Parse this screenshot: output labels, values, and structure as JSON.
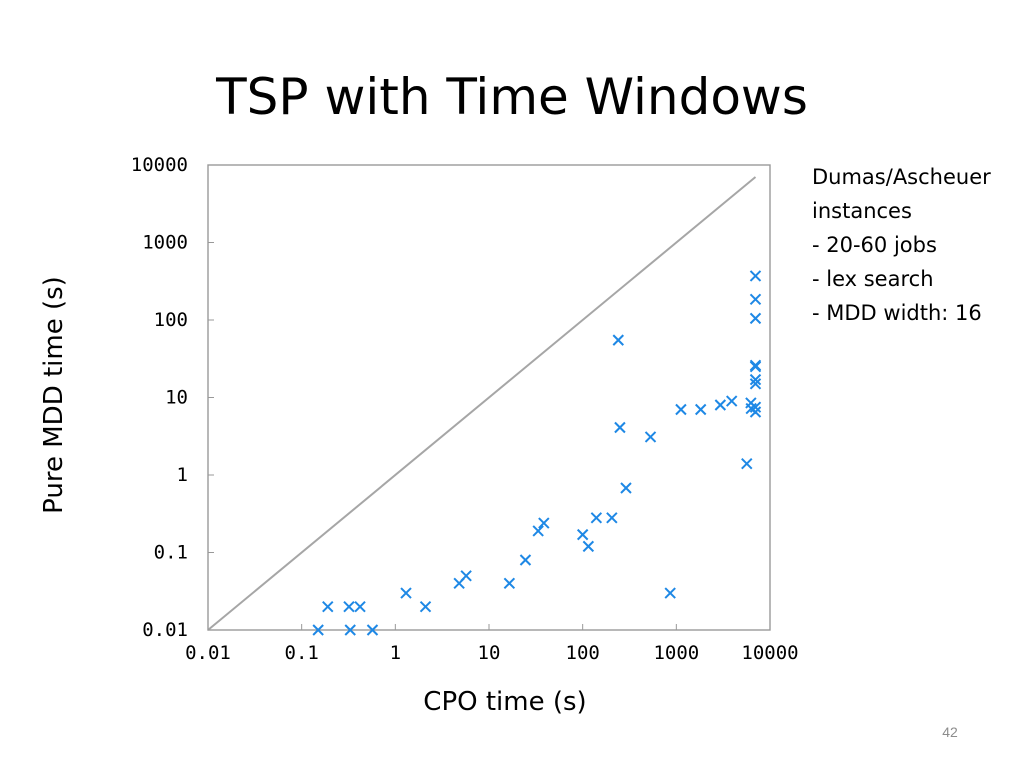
{
  "slide": {
    "title": "TSP with Time Windows",
    "notes": [
      "Dumas/Ascheuer",
      "instances",
      "- 20-60 jobs",
      "- lex search",
      "- MDD width: 16"
    ],
    "page_number": "42"
  },
  "chart_data": {
    "type": "scatter",
    "title": "",
    "xlabel": "CPO time (s)",
    "ylabel": "Pure MDD time (s)",
    "xscale": "log",
    "yscale": "log",
    "xlim": [
      0.01,
      10000
    ],
    "ylim": [
      0.01,
      10000
    ],
    "grid": false,
    "x_ticks": [
      0.01,
      0.1,
      1,
      10,
      100,
      1000,
      10000
    ],
    "x_tick_labels": [
      "0.01",
      "0.1",
      "1",
      "10",
      "100",
      "1000",
      "10000"
    ],
    "y_ticks": [
      0.01,
      0.1,
      1,
      10,
      100,
      1000,
      10000
    ],
    "y_tick_labels": [
      "0.01",
      "0.1",
      "1",
      "10",
      "100",
      "1000",
      "10000"
    ],
    "reference_line": {
      "from": [
        0.01,
        0.01
      ],
      "to": [
        7000,
        7000
      ],
      "color": "#a6a6a6"
    },
    "marker": "x",
    "marker_color": "#1e88e5",
    "series": [
      {
        "points": [
          [
            0.15,
            0.01
          ],
          [
            0.19,
            0.02
          ],
          [
            0.32,
            0.02
          ],
          [
            0.33,
            0.01
          ],
          [
            0.42,
            0.02
          ],
          [
            0.57,
            0.01
          ],
          [
            1.3,
            0.03
          ],
          [
            2.1,
            0.02
          ],
          [
            4.8,
            0.04
          ],
          [
            5.7,
            0.05
          ],
          [
            16.5,
            0.04
          ],
          [
            24.5,
            0.08
          ],
          [
            33.5,
            0.19
          ],
          [
            38.5,
            0.24
          ],
          [
            100,
            0.17
          ],
          [
            115,
            0.12
          ],
          [
            140,
            0.28
          ],
          [
            205,
            0.28
          ],
          [
            240,
            55
          ],
          [
            250,
            4.1
          ],
          [
            290,
            0.68
          ],
          [
            530,
            3.1
          ],
          [
            860,
            0.03
          ],
          [
            1120,
            7
          ],
          [
            1820,
            7
          ],
          [
            2950,
            8
          ],
          [
            3900,
            9
          ],
          [
            5650,
            1.4
          ],
          [
            6250,
            8.5
          ],
          [
            6300,
            7.2
          ],
          [
            7000,
            370
          ],
          [
            7000,
            185
          ],
          [
            7000,
            105
          ],
          [
            7000,
            26
          ],
          [
            7000,
            25
          ],
          [
            7000,
            17
          ],
          [
            7000,
            15
          ],
          [
            7000,
            7.5
          ],
          [
            7000,
            6.5
          ]
        ]
      }
    ]
  }
}
